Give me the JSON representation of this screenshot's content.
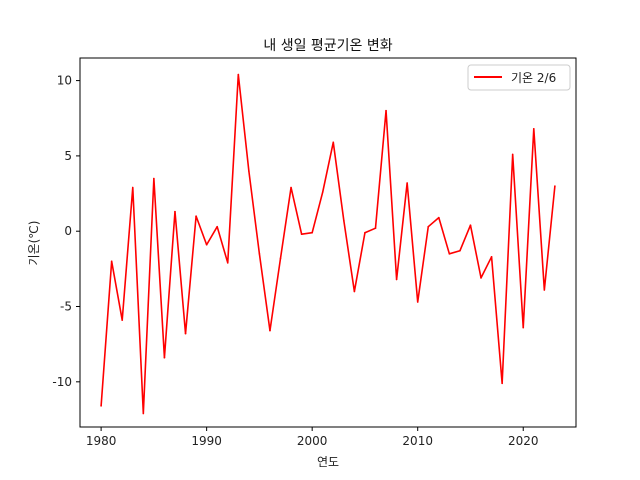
{
  "chart_data": {
    "type": "line",
    "title": "내 생일 평균기온 변화",
    "xlabel": "연도",
    "ylabel": "기온(℃)",
    "xlim": [
      1978,
      2025
    ],
    "ylim": [
      -13,
      11.5
    ],
    "xticks": [
      1980,
      1990,
      2000,
      2010,
      2020
    ],
    "yticks": [
      -10,
      -5,
      0,
      5,
      10
    ],
    "grid": false,
    "legend_position": "top-right",
    "series": [
      {
        "name": "기온 2/6",
        "color": "#ff0000",
        "x": [
          1980,
          1981,
          1982,
          1983,
          1984,
          1985,
          1986,
          1987,
          1988,
          1989,
          1990,
          1991,
          1992,
          1993,
          1994,
          1995,
          1996,
          1997,
          1998,
          1999,
          2000,
          2001,
          2002,
          2003,
          2004,
          2005,
          2006,
          2007,
          2008,
          2009,
          2010,
          2011,
          2012,
          2013,
          2014,
          2015,
          2016,
          2017,
          2018,
          2019,
          2020,
          2021,
          2022,
          2023
        ],
        "values": [
          -11.6,
          -2.0,
          -5.9,
          2.9,
          -12.1,
          3.5,
          -8.4,
          1.3,
          -6.8,
          1.0,
          -0.9,
          0.3,
          -2.1,
          10.4,
          4.0,
          -1.5,
          -6.6,
          -1.8,
          2.9,
          -0.2,
          -0.1,
          2.6,
          5.9,
          0.7,
          -4.0,
          -0.1,
          0.2,
          8.0,
          -3.2,
          3.2,
          -4.7,
          0.3,
          0.9,
          -1.5,
          -1.3,
          0.4,
          -3.1,
          -1.7,
          -10.1,
          5.1,
          -6.4,
          6.8,
          -3.9,
          3.0
        ]
      }
    ]
  }
}
